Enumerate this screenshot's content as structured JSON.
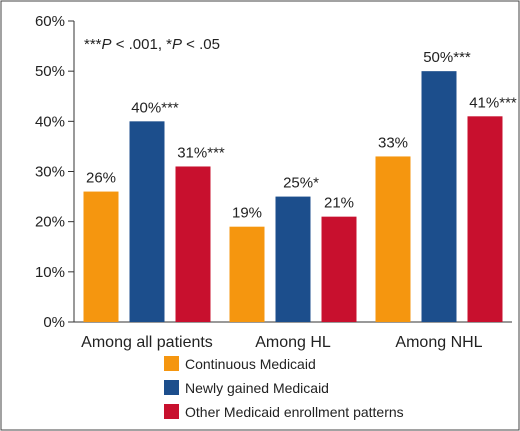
{
  "chart_data": {
    "type": "bar",
    "title": "",
    "xlabel": "",
    "ylabel": "",
    "ylim": [
      0,
      60
    ],
    "yticks": [
      0,
      10,
      20,
      30,
      40,
      50,
      60
    ],
    "ytick_labels": [
      "0%",
      "10%",
      "20%",
      "30%",
      "40%",
      "50%",
      "60%"
    ],
    "grid": false,
    "legend_position": "bottom",
    "categories": [
      "Among all patients",
      "Among HL",
      "Among NHL"
    ],
    "series": [
      {
        "name": "Continuous Medicaid",
        "color": "#F5960F",
        "values": [
          26,
          19,
          33
        ],
        "labels": [
          "26%",
          "19%",
          "33%"
        ]
      },
      {
        "name": "Newly gained Medicaid",
        "color": "#1C4E8C",
        "values": [
          40,
          25,
          50
        ],
        "labels": [
          "40%***",
          "25%*",
          "50%***"
        ]
      },
      {
        "name": "Other Medicaid enrollment patterns",
        "color": "#C8102E",
        "values": [
          31,
          21,
          41
        ],
        "labels": [
          "31%***",
          "21%",
          "41%***"
        ]
      }
    ],
    "annotation": {
      "parts": [
        {
          "text": "***",
          "italic": false
        },
        {
          "text": "P",
          "italic": true
        },
        {
          "text": " < .001, *",
          "italic": false
        },
        {
          "text": "P",
          "italic": true
        },
        {
          "text": " < .05",
          "italic": false
        }
      ]
    }
  }
}
